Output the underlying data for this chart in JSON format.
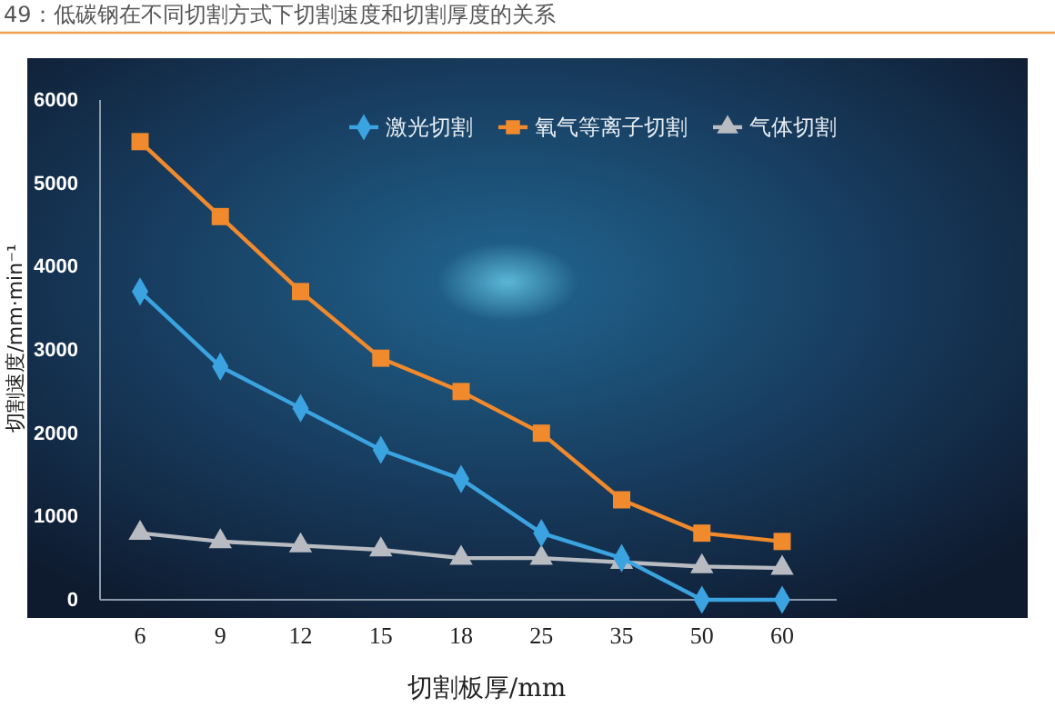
{
  "chart_data": {
    "type": "line",
    "title": "49：低碳钢在不同切割方式下切割速度和切割厚度的关系",
    "xlabel": "切割板厚/mm",
    "ylabel": "切割速度/mm·min⁻¹",
    "categories": [
      "6",
      "9",
      "12",
      "15",
      "18",
      "25",
      "35",
      "50",
      "60"
    ],
    "series": [
      {
        "name": "激光切割",
        "color": "#3ba3e0",
        "marker": "diamond",
        "values": [
          3700,
          2800,
          2300,
          1800,
          1450,
          800,
          500,
          0,
          0
        ]
      },
      {
        "name": "氧气等离子切割",
        "color": "#f08a2c",
        "marker": "square",
        "values": [
          5500,
          4600,
          3700,
          2900,
          2500,
          2000,
          1200,
          800,
          700
        ]
      },
      {
        "name": "气体切割",
        "color": "#b8bcc2",
        "marker": "triangle",
        "values": [
          800,
          700,
          650,
          600,
          500,
          500,
          450,
          400,
          380
        ]
      }
    ],
    "ylim": [
      0,
      6000
    ],
    "yticks": [
      0,
      1000,
      2000,
      3000,
      4000,
      5000,
      6000
    ],
    "grid": false,
    "legend": "top right"
  }
}
